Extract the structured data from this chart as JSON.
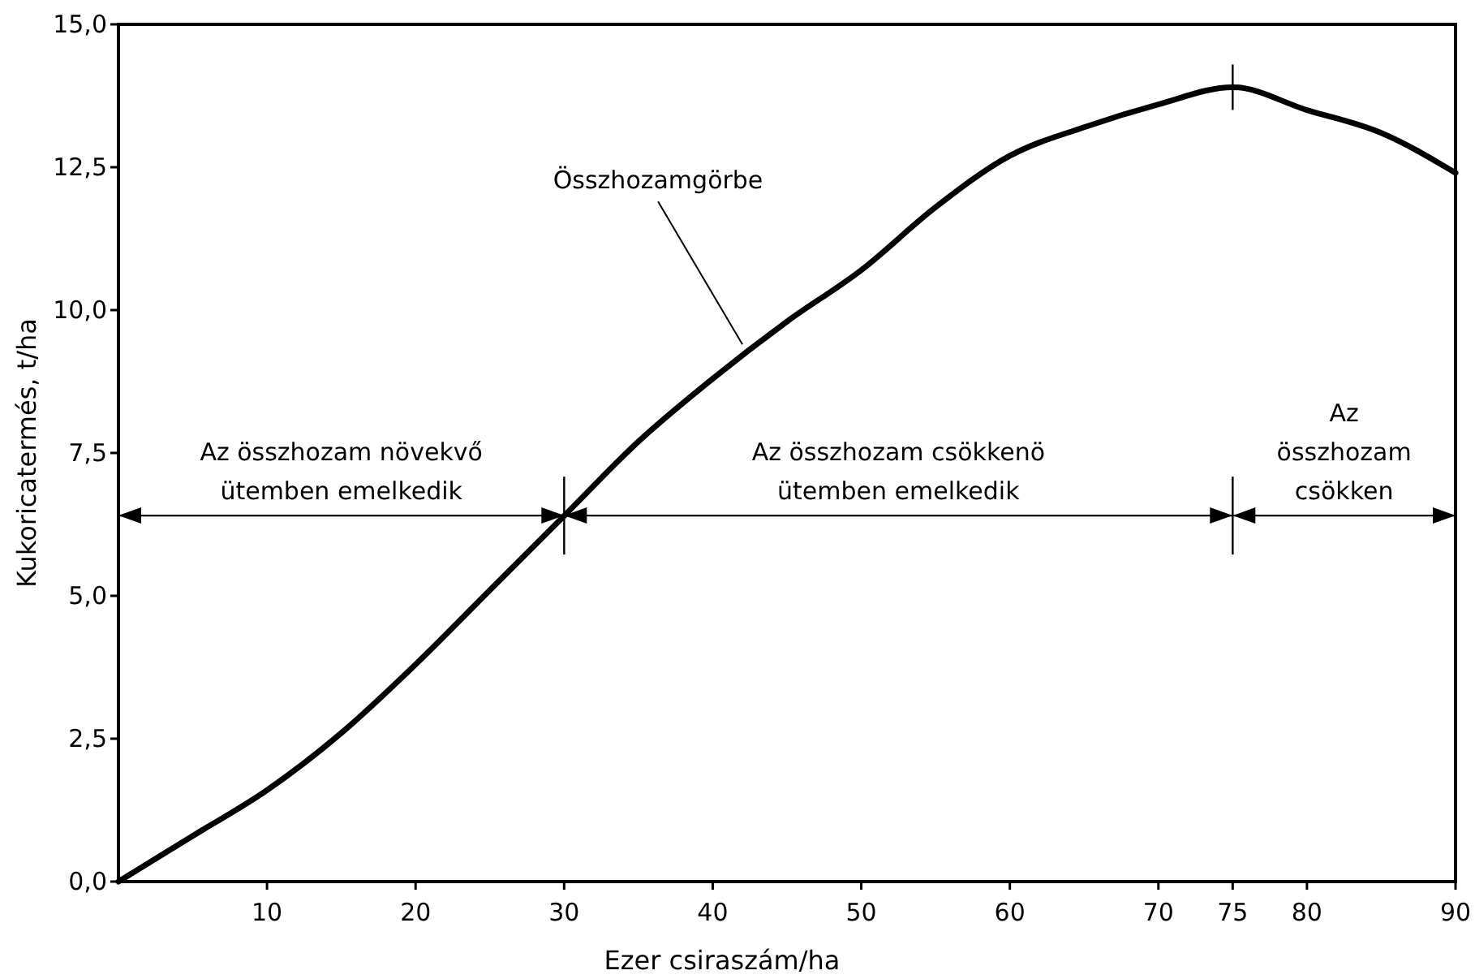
{
  "chart_data": {
    "type": "line",
    "xlabel": "Ezer csiraszám/ha",
    "ylabel": "Kukoricatermés, t/ha",
    "xlim": [
      0,
      90
    ],
    "ylim": [
      0,
      15
    ],
    "xticks": [
      10,
      20,
      30,
      40,
      50,
      60,
      70,
      75,
      80,
      90
    ],
    "yticks": [
      {
        "value": 0,
        "label": "0,0"
      },
      {
        "value": 2.5,
        "label": "2,5"
      },
      {
        "value": 5,
        "label": "5,0"
      },
      {
        "value": 7.5,
        "label": "7,5"
      },
      {
        "value": 10,
        "label": "10,0"
      },
      {
        "value": 12.5,
        "label": "12,5"
      },
      {
        "value": 15,
        "label": "15,0"
      }
    ],
    "grid": false,
    "marker": "none",
    "line_style": "solid",
    "series": [
      {
        "color": "#000000",
        "x": [
          0,
          5,
          10,
          15,
          20,
          25,
          30,
          35,
          40,
          45,
          50,
          55,
          60,
          65,
          70,
          75,
          80,
          85,
          90
        ],
        "values": [
          0,
          0.8,
          1.6,
          2.6,
          3.8,
          5.1,
          6.4,
          7.7,
          8.8,
          9.8,
          10.7,
          11.8,
          12.7,
          13.2,
          13.6,
          13.9,
          13.5,
          13.1,
          12.4
        ]
      }
    ],
    "annotations": [
      {
        "text": "Összhozamgörbe",
        "x": 42,
        "y": 9.4
      },
      "Az összhozam növekvő\nütemben emelkedik",
      "Az összhozam csökkenö\nütemben emelkedik",
      "Az\nösszhozam\ncsökken"
    ],
    "ref_lines": [
      {
        "axis": "x",
        "value": 30
      },
      {
        "axis": "x",
        "value": 75
      }
    ]
  }
}
